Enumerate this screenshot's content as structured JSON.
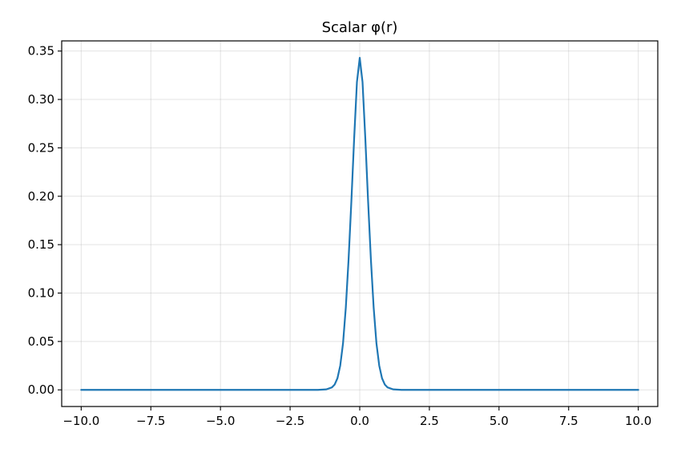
{
  "chart_data": {
    "type": "line",
    "title": "Scalar φ(r)",
    "xlabel": "",
    "ylabel": "",
    "xlim": [
      -10.7,
      10.7
    ],
    "ylim": [
      -0.0172,
      0.3605
    ],
    "grid": true,
    "x_ticks": [
      -10.0,
      -7.5,
      -5.0,
      -2.5,
      0.0,
      2.5,
      5.0,
      7.5,
      10.0
    ],
    "x_tick_labels": [
      "−10.0",
      "−7.5",
      "−5.0",
      "−2.5",
      "0.0",
      "2.5",
      "5.0",
      "7.5",
      "10.0"
    ],
    "y_ticks": [
      0.0,
      0.05,
      0.1,
      0.15,
      0.2,
      0.25,
      0.3,
      0.35
    ],
    "y_tick_labels": [
      "0.00",
      "0.05",
      "0.10",
      "0.15",
      "0.20",
      "0.25",
      "0.30",
      "0.35"
    ],
    "series": [
      {
        "name": "φ(r)",
        "color": "#1f77b4",
        "x": [
          -10.0,
          -8.0,
          -6.0,
          -4.0,
          -2.0,
          -1.5,
          -1.2,
          -1.0,
          -0.9,
          -0.8,
          -0.7,
          -0.6,
          -0.5,
          -0.4,
          -0.3,
          -0.2,
          -0.1,
          0.0,
          0.1,
          0.2,
          0.3,
          0.4,
          0.5,
          0.6,
          0.7,
          0.8,
          0.9,
          1.0,
          1.2,
          1.5,
          2.0,
          4.0,
          6.0,
          8.0,
          10.0
        ],
        "y": [
          0.0,
          0.0,
          0.0,
          0.0,
          0.0,
          0.0,
          0.0005,
          0.0025,
          0.0055,
          0.012,
          0.025,
          0.048,
          0.085,
          0.135,
          0.195,
          0.26,
          0.318,
          0.343,
          0.318,
          0.26,
          0.195,
          0.135,
          0.085,
          0.048,
          0.025,
          0.012,
          0.0055,
          0.0025,
          0.0005,
          0.0,
          0.0,
          0.0,
          0.0,
          0.0,
          0.0
        ]
      }
    ]
  }
}
